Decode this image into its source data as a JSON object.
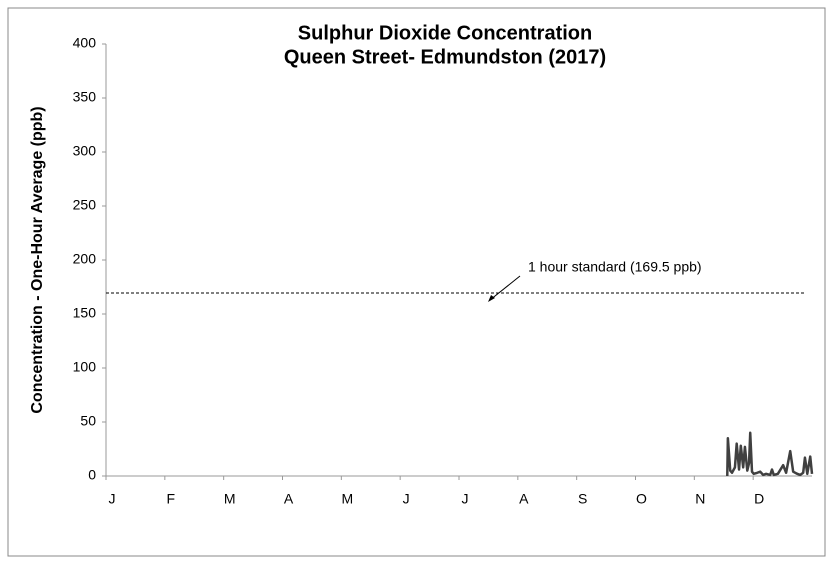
{
  "chart_data": {
    "type": "line",
    "title": [
      "Sulphur Dioxide Concentration",
      "Queen Street- Edmundston (2017)"
    ],
    "y_label": "Concentration - One-Hour Average (ppb)",
    "xlim": [
      0,
      12
    ],
    "xticks": [
      {
        "value": 0,
        "label": "J"
      },
      {
        "value": 1,
        "label": "F"
      },
      {
        "value": 2,
        "label": "M"
      },
      {
        "value": 3,
        "label": "A"
      },
      {
        "value": 4,
        "label": "M"
      },
      {
        "value": 5,
        "label": "J"
      },
      {
        "value": 6,
        "label": "J"
      },
      {
        "value": 7,
        "label": "A"
      },
      {
        "value": 8,
        "label": "S"
      },
      {
        "value": 9,
        "label": "O"
      },
      {
        "value": 10,
        "label": "N"
      },
      {
        "value": 11,
        "label": "D"
      }
    ],
    "ylim": [
      0,
      400
    ],
    "yticks": [
      0,
      50,
      100,
      150,
      200,
      250,
      300,
      350,
      400
    ],
    "standard": {
      "value": 169.5,
      "label": "1 hour standard (169.5 ppb)"
    },
    "series": [
      {
        "color": "#404040",
        "x": [
          10.56,
          10.57,
          10.61,
          10.64,
          10.69,
          10.72,
          10.76,
          10.79,
          10.83,
          10.86,
          10.9,
          10.93,
          10.95,
          10.98,
          11.01,
          11.07,
          11.12,
          11.17,
          11.22,
          11.29,
          11.32,
          11.35,
          11.42,
          11.51,
          11.56,
          11.63,
          11.68,
          11.75,
          11.8,
          11.85,
          11.88,
          11.92,
          11.97,
          12.0
        ],
        "values": [
          0,
          35,
          5,
          3,
          8,
          30,
          6,
          28,
          8,
          27,
          5,
          12,
          40,
          4,
          2,
          3,
          4,
          1,
          2,
          1,
          6,
          1,
          2,
          10,
          3,
          23,
          4,
          2,
          1,
          3,
          17,
          2,
          18,
          2
        ]
      }
    ]
  }
}
